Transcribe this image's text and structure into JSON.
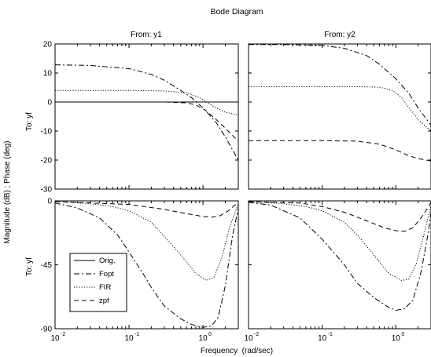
{
  "chart_data": {
    "type": "line",
    "title": "Bode Diagram",
    "xlabel": "Frequency  (rad/sec)",
    "ylabel": "Magnitude (dB) ; Phase (deg)",
    "x_scale": "log",
    "xlim": [
      0.01,
      3
    ],
    "xticks": [
      {
        "value": 0.01,
        "base": "10",
        "exp": "-2"
      },
      {
        "value": 0.1,
        "base": "10",
        "exp": "-1"
      },
      {
        "value": 1,
        "base": "10",
        "exp": "0"
      }
    ],
    "column_titles": [
      "From: y1",
      "From: y2"
    ],
    "row_labels": [
      "To: yf",
      "To: yf"
    ],
    "grid": false,
    "legend": {
      "placement": "bottom-left of lower-left panel",
      "entries": [
        {
          "name": "Orig.",
          "style": "solid"
        },
        {
          "name": "Fopt",
          "style": "dashdot"
        },
        {
          "name": "FIR",
          "style": "dotted"
        },
        {
          "name": "zpf",
          "style": "dashed"
        }
      ]
    },
    "panels": [
      {
        "id": "magnitude-y1",
        "ylim": [
          -30,
          20
        ],
        "yticks": [
          "20",
          "10",
          "0",
          "-10",
          "-20",
          "-30"
        ],
        "yvalues": [
          20,
          10,
          0,
          -10,
          -20,
          -30
        ],
        "series": [
          {
            "name": "Orig.",
            "style": "solid",
            "points": [
              [
                0.01,
                0
              ],
              [
                0.1,
                0
              ],
              [
                0.5,
                0
              ],
              [
                1,
                0
              ],
              [
                1.5,
                0
              ],
              [
                2,
                0
              ],
              [
                3,
                0
              ]
            ]
          },
          {
            "name": "Fopt",
            "style": "dashdot",
            "points": [
              [
                0.01,
                12.8
              ],
              [
                0.03,
                12.6
              ],
              [
                0.1,
                11.5
              ],
              [
                0.2,
                9.5
              ],
              [
                0.3,
                7.5
              ],
              [
                0.5,
                4
              ],
              [
                0.7,
                1.5
              ],
              [
                1,
                -2
              ],
              [
                1.5,
                -7
              ],
              [
                2,
                -12
              ],
              [
                3,
                -20
              ]
            ]
          },
          {
            "name": "FIR",
            "style": "dotted",
            "points": [
              [
                0.01,
                4
              ],
              [
                0.1,
                4
              ],
              [
                0.3,
                3.8
              ],
              [
                0.6,
                3.2
              ],
              [
                0.9,
                1.5
              ],
              [
                1.2,
                -0.5
              ],
              [
                1.5,
                -2
              ],
              [
                2,
                -3.5
              ],
              [
                3,
                -4.5
              ]
            ]
          },
          {
            "name": "zpf",
            "style": "dashed",
            "points": [
              [
                0.01,
                0
              ],
              [
                0.1,
                0
              ],
              [
                0.3,
                0
              ],
              [
                0.6,
                -0.3
              ],
              [
                0.8,
                -1
              ],
              [
                1.1,
                -3
              ],
              [
                1.5,
                -6
              ],
              [
                2,
                -9
              ],
              [
                3,
                -13.5
              ]
            ]
          }
        ]
      },
      {
        "id": "magnitude-y2",
        "ylim": [
          -30,
          20
        ],
        "yvalues": [
          20,
          10,
          0,
          -10,
          -20,
          -30
        ],
        "series": [
          {
            "name": "Fopt",
            "style": "dashdot",
            "points": [
              [
                0.01,
                19.8
              ],
              [
                0.03,
                19.8
              ],
              [
                0.1,
                19.5
              ],
              [
                0.2,
                18.5
              ],
              [
                0.4,
                16
              ],
              [
                0.6,
                13
              ],
              [
                1,
                8
              ],
              [
                1.5,
                3
              ],
              [
                2,
                -2
              ],
              [
                3,
                -8
              ]
            ]
          },
          {
            "name": "FIR",
            "style": "dotted",
            "points": [
              [
                0.01,
                5.3
              ],
              [
                0.1,
                5.3
              ],
              [
                0.3,
                5.3
              ],
              [
                0.6,
                5.1
              ],
              [
                0.9,
                4
              ],
              [
                1.2,
                1.5
              ],
              [
                1.5,
                -2
              ],
              [
                2,
                -6
              ],
              [
                3,
                -10
              ]
            ]
          },
          {
            "name": "zpf",
            "style": "dashed",
            "points": [
              [
                0.01,
                -13.3
              ],
              [
                0.1,
                -13.3
              ],
              [
                0.3,
                -13.5
              ],
              [
                0.6,
                -14.5
              ],
              [
                1,
                -16.5
              ],
              [
                1.5,
                -18.5
              ],
              [
                2,
                -19.5
              ],
              [
                3,
                -20.3
              ]
            ]
          }
        ]
      },
      {
        "id": "phase-y1",
        "ylim": [
          -90,
          0
        ],
        "yticks": [
          "0",
          "-45",
          "-90"
        ],
        "yvalues": [
          0,
          -45,
          -90
        ],
        "series": [
          {
            "name": "Fopt",
            "style": "dashdot",
            "points": [
              [
                0.01,
                -1.5
              ],
              [
                0.02,
                -5
              ],
              [
                0.04,
                -12
              ],
              [
                0.07,
                -24
              ],
              [
                0.1,
                -36
              ],
              [
                0.15,
                -50
              ],
              [
                0.2,
                -61
              ],
              [
                0.3,
                -74
              ],
              [
                0.5,
                -83
              ],
              [
                0.7,
                -87
              ],
              [
                1,
                -89
              ],
              [
                1.3,
                -88
              ],
              [
                1.6,
                -82
              ],
              [
                2,
                -60
              ],
              [
                2.5,
                -25
              ],
              [
                3,
                -5
              ]
            ]
          },
          {
            "name": "FIR",
            "style": "dotted",
            "points": [
              [
                0.01,
                -0.5
              ],
              [
                0.03,
                -2
              ],
              [
                0.06,
                -4
              ],
              [
                0.1,
                -7
              ],
              [
                0.2,
                -15
              ],
              [
                0.3,
                -25
              ],
              [
                0.5,
                -38
              ],
              [
                0.8,
                -51
              ],
              [
                1.1,
                -56
              ],
              [
                1.4,
                -54
              ],
              [
                1.8,
                -40
              ],
              [
                2.3,
                -18
              ],
              [
                3,
                -2
              ]
            ]
          },
          {
            "name": "zpf",
            "style": "dashed",
            "points": [
              [
                0.01,
                -0.5
              ],
              [
                0.1,
                -2.5
              ],
              [
                0.3,
                -6
              ],
              [
                0.6,
                -9
              ],
              [
                1,
                -11
              ],
              [
                1.3,
                -11.5
              ],
              [
                1.7,
                -10.5
              ],
              [
                2.2,
                -7
              ],
              [
                2.7,
                -3
              ],
              [
                3,
                -1
              ]
            ]
          }
        ]
      },
      {
        "id": "phase-y2",
        "ylim": [
          -90,
          0
        ],
        "yvalues": [
          0,
          -45,
          -90
        ],
        "series": [
          {
            "name": "Fopt",
            "style": "dashdot",
            "points": [
              [
                0.01,
                -1
              ],
              [
                0.02,
                -3
              ],
              [
                0.05,
                -12
              ],
              [
                0.1,
                -27
              ],
              [
                0.2,
                -45
              ],
              [
                0.3,
                -58
              ],
              [
                0.5,
                -68
              ],
              [
                0.8,
                -75
              ],
              [
                1,
                -77
              ],
              [
                1.3,
                -76
              ],
              [
                1.7,
                -70
              ],
              [
                2.2,
                -50
              ],
              [
                2.7,
                -25
              ],
              [
                3,
                -8
              ]
            ]
          },
          {
            "name": "FIR",
            "style": "dotted",
            "points": [
              [
                0.01,
                -0.5
              ],
              [
                0.03,
                -2
              ],
              [
                0.06,
                -4
              ],
              [
                0.1,
                -7
              ],
              [
                0.2,
                -15
              ],
              [
                0.3,
                -24
              ],
              [
                0.5,
                -38
              ],
              [
                0.8,
                -51
              ],
              [
                1.2,
                -56
              ],
              [
                1.5,
                -55
              ],
              [
                1.9,
                -44
              ],
              [
                2.4,
                -24
              ],
              [
                3,
                -3
              ]
            ]
          },
          {
            "name": "zpf",
            "style": "dashed",
            "points": [
              [
                0.01,
                -0.5
              ],
              [
                0.05,
                -1.5
              ],
              [
                0.1,
                -4
              ],
              [
                0.2,
                -8
              ],
              [
                0.4,
                -14
              ],
              [
                0.7,
                -19
              ],
              [
                1,
                -21
              ],
              [
                1.3,
                -21.5
              ],
              [
                1.7,
                -19
              ],
              [
                2.2,
                -12
              ],
              [
                2.7,
                -5
              ],
              [
                3,
                -1
              ]
            ]
          }
        ]
      }
    ]
  }
}
